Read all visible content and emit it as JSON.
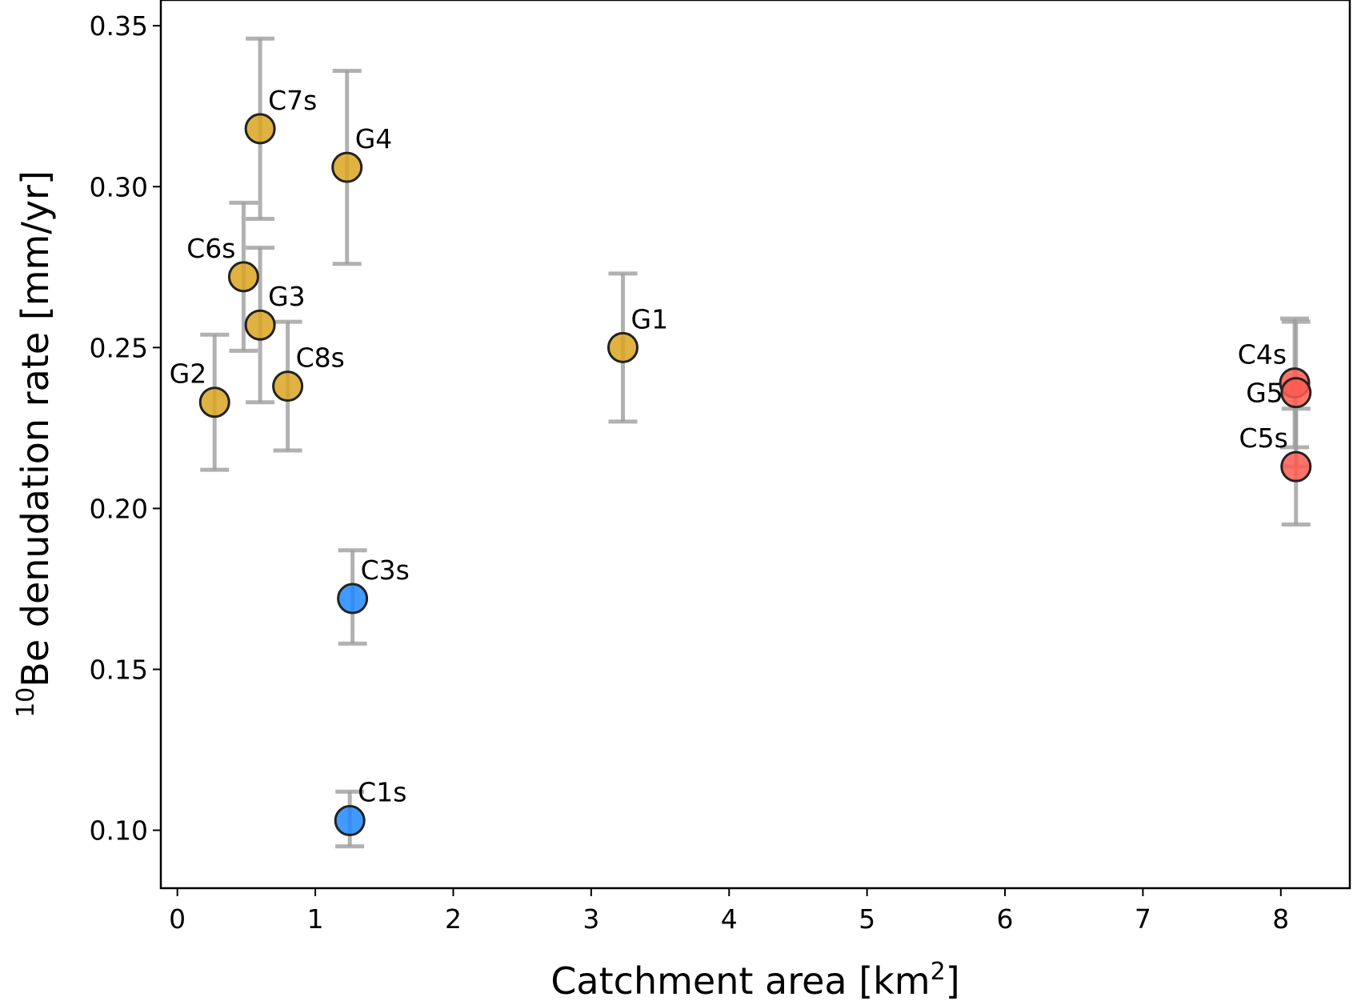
{
  "chart_data": {
    "type": "scatter",
    "xlabel": "Catchment area [km",
    "xlabel_sup": "2",
    "xlabel_end": "]",
    "ylabel_sup": "10",
    "ylabel": "Be denudation rate [mm/yr]",
    "xlim": [
      -0.12,
      8.5
    ],
    "ylim": [
      0.082,
      0.358
    ],
    "xticks": [
      0,
      1,
      2,
      3,
      4,
      5,
      6,
      7,
      8
    ],
    "xtick_labels": [
      "0",
      "1",
      "2",
      "3",
      "4",
      "5",
      "6",
      "7",
      "8"
    ],
    "yticks": [
      0.1,
      0.15,
      0.2,
      0.25,
      0.3,
      0.35
    ],
    "ytick_labels": [
      "0.10",
      "0.15",
      "0.20",
      "0.25",
      "0.30",
      "0.35"
    ],
    "colors": {
      "gold": "#DAA520",
      "blue": "#1E88FF",
      "red": "#FF5A50",
      "error": "#9E9E9E"
    },
    "points": [
      {
        "label": "C7s",
        "x": 0.6,
        "y": 0.318,
        "err_low": 0.29,
        "err_high": 0.346,
        "color": "gold",
        "label_pos": "upper-right"
      },
      {
        "label": "G4",
        "x": 1.23,
        "y": 0.306,
        "err_low": 0.276,
        "err_high": 0.336,
        "color": "gold",
        "label_pos": "upper-right"
      },
      {
        "label": "C6s",
        "x": 0.48,
        "y": 0.272,
        "err_low": 0.249,
        "err_high": 0.295,
        "color": "gold",
        "label_pos": "upper-left"
      },
      {
        "label": "G3",
        "x": 0.6,
        "y": 0.257,
        "err_low": 0.233,
        "err_high": 0.281,
        "color": "gold",
        "label_pos": "upper-right"
      },
      {
        "label": "C8s",
        "x": 0.8,
        "y": 0.238,
        "err_low": 0.218,
        "err_high": 0.258,
        "color": "gold",
        "label_pos": "upper-right"
      },
      {
        "label": "G2",
        "x": 0.27,
        "y": 0.233,
        "err_low": 0.212,
        "err_high": 0.254,
        "color": "gold",
        "label_pos": "upper-left"
      },
      {
        "label": "G1",
        "x": 3.23,
        "y": 0.25,
        "err_low": 0.227,
        "err_high": 0.273,
        "color": "gold",
        "label_pos": "upper-right"
      },
      {
        "label": "C3s",
        "x": 1.27,
        "y": 0.172,
        "err_low": 0.158,
        "err_high": 0.187,
        "color": "blue",
        "label_pos": "upper-right"
      },
      {
        "label": "C1s",
        "x": 1.25,
        "y": 0.103,
        "err_low": 0.095,
        "err_high": 0.112,
        "color": "blue",
        "label_pos": "upper-right"
      },
      {
        "label": "C4s",
        "x": 8.1,
        "y": 0.239,
        "err_low": 0.219,
        "err_high": 0.259,
        "color": "red",
        "label_pos": "upper-left"
      },
      {
        "label": "G5",
        "x": 8.11,
        "y": 0.236,
        "err_low": 0.213,
        "err_high": 0.258,
        "color": "red",
        "label_pos": "left"
      },
      {
        "label": "C5s",
        "x": 8.11,
        "y": 0.213,
        "err_low": 0.195,
        "err_high": 0.231,
        "color": "red",
        "label_pos": "upper-left"
      }
    ]
  }
}
